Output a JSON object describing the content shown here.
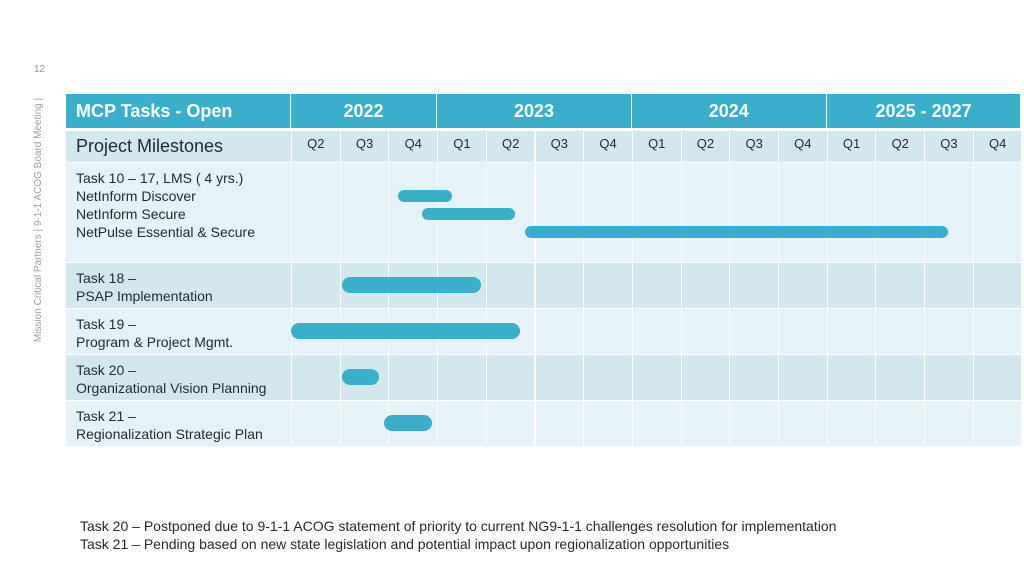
{
  "slide": {
    "page_number": "12",
    "side_caption": "Mission Critical Partners  |  9-1-1 ACOG Board Meeting  |",
    "notes": [
      "Task 20 – Postponed due to 9-1-1 ACOG statement of priority to current NG9-1-1 challenges resolution for implementation",
      "Task 21 – Pending based on new state legislation and potential impact upon regionalization opportunities"
    ]
  },
  "colors": {
    "header": "#3aafcc",
    "bar": "#3aafcc",
    "row_light": "#e5f2f7",
    "row_dark": "#d3e7ef",
    "grid_line": "#ffffff"
  },
  "chart_data": {
    "type": "gantt",
    "header_title": "MCP Tasks - Open",
    "subheader_title": "Project Milestones",
    "years": [
      {
        "label": "2022",
        "quarters": [
          "Q2",
          "Q3",
          "Q4"
        ]
      },
      {
        "label": "2023",
        "quarters": [
          "Q1",
          "Q2",
          "Q3",
          "Q4"
        ]
      },
      {
        "label": "2024",
        "quarters": [
          "Q1",
          "Q2",
          "Q3",
          "Q4"
        ]
      },
      {
        "label": "2025 - 2027",
        "quarters": [
          "Q1",
          "Q2",
          "Q3",
          "Q4"
        ]
      }
    ],
    "rows": [
      {
        "lines": [
          "Task 10 – 17, LMS ( 4 yrs.)",
          "NetInform Discover",
          "NetInform Secure",
          "NetPulse Essential & Secure"
        ],
        "bars": [
          {
            "start": 2.2,
            "end": 3.3
          },
          {
            "start": 2.7,
            "end": 4.6
          },
          {
            "start": 4.8,
            "end": 13.5
          }
        ]
      },
      {
        "lines": [
          "Task 18 –",
          "PSAP Implementation"
        ],
        "bars": [
          {
            "start": 1.05,
            "end": 3.9
          }
        ]
      },
      {
        "lines": [
          "Task 19 –",
          "Program & Project Mgmt."
        ],
        "bars": [
          {
            "start": 0.0,
            "end": 4.7
          }
        ]
      },
      {
        "lines": [
          "Task 20 –",
          "Organizational Vision Planning"
        ],
        "bars": [
          {
            "start": 1.05,
            "end": 1.8
          }
        ]
      },
      {
        "lines": [
          "Task 21 –",
          "Regionalization Strategic Plan"
        ],
        "bars": [
          {
            "start": 1.9,
            "end": 2.9
          }
        ]
      }
    ]
  }
}
